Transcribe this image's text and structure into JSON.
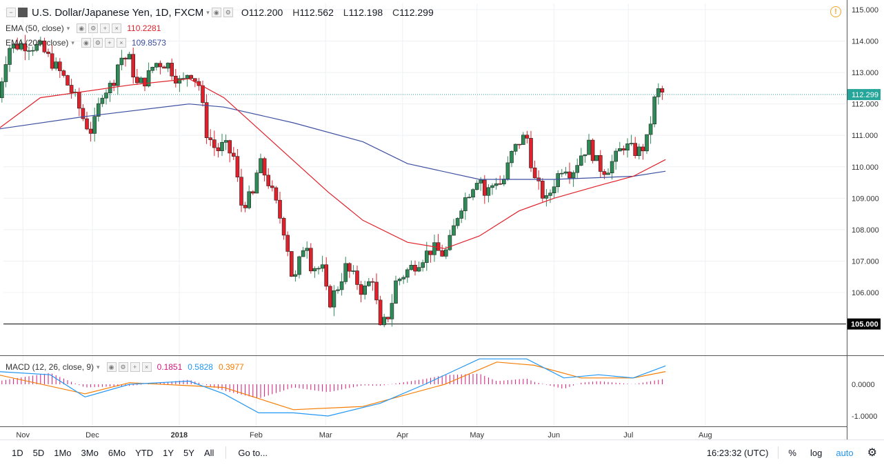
{
  "header": {
    "symbol": "U.S. Dollar/Japanese Yen, 1D, FXCM",
    "open_label": "O",
    "open": "112.200",
    "high_label": "H",
    "high": "112.562",
    "low_label": "L",
    "low": "112.198",
    "close_label": "C",
    "close": "112.299"
  },
  "indicators": {
    "ema50": {
      "label": "EMA (50, close)",
      "value": "110.2281",
      "color": "#e0202a"
    },
    "ema200": {
      "label": "EMA (200, close)",
      "value": "109.8573",
      "color": "#3c4fa0"
    },
    "macd": {
      "label": "MACD (12, 26, close, 9)",
      "hist": "0.1851",
      "macd": "0.5828",
      "signal": "0.3977",
      "hist_color": "#d1177a",
      "macd_color": "#2196f3",
      "signal_color": "#f57c00"
    }
  },
  "colors": {
    "up": "#2e8b57",
    "down": "#e0202a",
    "last_price_bg": "#26a69a",
    "grid": "#eef0f3"
  },
  "chart_data": {
    "type": "candlestick",
    "title": "U.S. Dollar/Japanese Yen, 1D, FXCM",
    "y_range": [
      104.7,
      115.2
    ],
    "y_ticks": [
      "115.000",
      "114.000",
      "113.000",
      "112.000",
      "111.000",
      "110.000",
      "109.000",
      "108.000",
      "107.000",
      "106.000"
    ],
    "x_ticks": [
      "Nov",
      "Dec",
      "2018",
      "Feb",
      "Mar",
      "Apr",
      "May",
      "Jun",
      "Jul",
      "Aug"
    ],
    "last_price": "112.299",
    "horizontal_line": "105.000",
    "close_path": [
      [
        "Oct 20",
        112.2
      ],
      [
        "Oct 24",
        113.8
      ],
      [
        "Oct 30",
        113.9
      ],
      [
        "Nov 6",
        113.8
      ],
      [
        "Nov 10",
        113.4
      ],
      [
        "Nov 15",
        112.9
      ],
      [
        "Nov 20",
        112.2
      ],
      [
        "Nov 24",
        111.4
      ],
      [
        "Nov 27",
        111.1
      ],
      [
        "Dec 1",
        112.4
      ],
      [
        "Dec 5",
        112.6
      ],
      [
        "Dec 8",
        113.5
      ],
      [
        "Dec 12",
        113.4
      ],
      [
        "Dec 15",
        112.6
      ],
      [
        "Dec 19",
        112.8
      ],
      [
        "Dec 22",
        113.3
      ],
      [
        "Dec 27",
        113.3
      ],
      [
        "Jan 2",
        112.6
      ],
      [
        "Jan 5",
        113.1
      ],
      [
        "Jan 9",
        112.6
      ],
      [
        "Jan 12",
        111.1
      ],
      [
        "Jan 16",
        110.5
      ],
      [
        "Jan 19",
        110.7
      ],
      [
        "Jan 23",
        110.3
      ],
      [
        "Jan 26",
        108.8
      ],
      [
        "Jan 31",
        109.1
      ],
      [
        "Feb 2",
        110.2
      ],
      [
        "Feb 6",
        109.5
      ],
      [
        "Feb 9",
        108.8
      ],
      [
        "Feb 13",
        107.8
      ],
      [
        "Feb 16",
        106.2
      ],
      [
        "Feb 21",
        107.8
      ],
      [
        "Feb 23",
        106.9
      ],
      [
        "Feb 28",
        106.7
      ],
      [
        "Mar 2",
        105.6
      ],
      [
        "Mar 6",
        106.2
      ],
      [
        "Mar 9",
        106.8
      ],
      [
        "Mar 14",
        106.3
      ],
      [
        "Mar 16",
        106.0
      ],
      [
        "Mar 20",
        106.5
      ],
      [
        "Mar 23",
        104.8
      ],
      [
        "Mar 27",
        105.4
      ],
      [
        "Mar 29",
        106.3
      ],
      [
        "Apr 3",
        106.7
      ],
      [
        "Apr 6",
        106.9
      ],
      [
        "Apr 10",
        107.2
      ],
      [
        "Apr 13",
        107.4
      ],
      [
        "Apr 18",
        107.2
      ],
      [
        "Apr 20",
        107.6
      ],
      [
        "Apr 24",
        108.7
      ],
      [
        "Apr 27",
        109.1
      ],
      [
        "May 2",
        109.8
      ],
      [
        "May 4",
        109.1
      ],
      [
        "May 9",
        109.6
      ],
      [
        "May 11",
        109.4
      ],
      [
        "May 15",
        110.4
      ],
      [
        "May 18",
        110.8
      ],
      [
        "May 21",
        111.0
      ],
      [
        "May 24",
        109.6
      ],
      [
        "May 29",
        108.9
      ],
      [
        "Jun 1",
        109.5
      ],
      [
        "Jun 5",
        110.1
      ],
      [
        "Jun 8",
        109.8
      ],
      [
        "Jun 12",
        110.4
      ],
      [
        "Jun 15",
        110.7
      ],
      [
        "Jun 19",
        110.0
      ],
      [
        "Jun 22",
        109.9
      ],
      [
        "Jun 26",
        110.3
      ],
      [
        "Jun 29",
        110.7
      ],
      [
        "Jul 3",
        110.5
      ],
      [
        "Jul 6",
        110.5
      ],
      [
        "Jul 9",
        110.9
      ],
      [
        "Jul 11",
        112.0
      ],
      [
        "Jul 13",
        112.4
      ],
      [
        "Jul 16",
        112.3
      ]
    ],
    "ema50_path": [
      [
        "Oct 20",
        111.2
      ],
      [
        "Nov 6",
        112.2
      ],
      [
        "Nov 24",
        112.4
      ],
      [
        "Dec 12",
        112.6
      ],
      [
        "Jan 5",
        112.8
      ],
      [
        "Jan 19",
        112.2
      ],
      [
        "Feb 2",
        111.2
      ],
      [
        "Feb 16",
        110.2
      ],
      [
        "Mar 2",
        109.2
      ],
      [
        "Mar 16",
        108.3
      ],
      [
        "Apr 3",
        107.6
      ],
      [
        "Apr 18",
        107.4
      ],
      [
        "May 2",
        107.8
      ],
      [
        "May 18",
        108.6
      ],
      [
        "Jun 1",
        109.0
      ],
      [
        "Jun 19",
        109.4
      ],
      [
        "Jul 3",
        109.7
      ],
      [
        "Jul 16",
        110.23
      ]
    ],
    "ema200_path": [
      [
        "Oct 20",
        111.2
      ],
      [
        "Nov 24",
        111.6
      ],
      [
        "Jan 5",
        112.0
      ],
      [
        "Jan 19",
        111.9
      ],
      [
        "Feb 16",
        111.4
      ],
      [
        "Mar 16",
        110.8
      ],
      [
        "Apr 3",
        110.1
      ],
      [
        "May 2",
        109.6
      ],
      [
        "Jun 1",
        109.6
      ],
      [
        "Jul 3",
        109.7
      ],
      [
        "Jul 16",
        109.86
      ]
    ],
    "macd_pane": {
      "y_ticks": [
        "0.0000",
        "-1.0000"
      ],
      "macd_path": [
        [
          "Oct 20",
          0.4
        ],
        [
          "Nov 10",
          0.3
        ],
        [
          "Nov 24",
          -0.4
        ],
        [
          "Dec 12",
          0.0
        ],
        [
          "Jan 5",
          0.1
        ],
        [
          "Jan 19",
          -0.3
        ],
        [
          "Feb 2",
          -0.9
        ],
        [
          "Feb 16",
          -0.9
        ],
        [
          "Mar 2",
          -1.0
        ],
        [
          "Mar 23",
          -0.6
        ],
        [
          "Apr 10",
          0.0
        ],
        [
          "May 2",
          0.8
        ],
        [
          "May 21",
          0.8
        ],
        [
          "Jun 5",
          0.2
        ],
        [
          "Jun 19",
          0.3
        ],
        [
          "Jul 3",
          0.2
        ],
        [
          "Jul 16",
          0.58
        ]
      ],
      "signal_path": [
        [
          "Oct 20",
          0.3
        ],
        [
          "Nov 24",
          -0.3
        ],
        [
          "Dec 12",
          0.05
        ],
        [
          "Jan 19",
          -0.1
        ],
        [
          "Feb 16",
          -0.8
        ],
        [
          "Mar 16",
          -0.7
        ],
        [
          "Apr 18",
          0.0
        ],
        [
          "May 9",
          0.7
        ],
        [
          "May 24",
          0.6
        ],
        [
          "Jun 12",
          0.2
        ],
        [
          "Jul 3",
          0.2
        ],
        [
          "Jul 16",
          0.4
        ]
      ]
    }
  },
  "bottom": {
    "ranges": [
      "1D",
      "5D",
      "1Mo",
      "3Mo",
      "6Mo",
      "YTD",
      "1Y",
      "5Y",
      "All"
    ],
    "goto": "Go to...",
    "time": "16:23:32 (UTC)",
    "pct": "%",
    "log": "log",
    "auto": "auto"
  }
}
